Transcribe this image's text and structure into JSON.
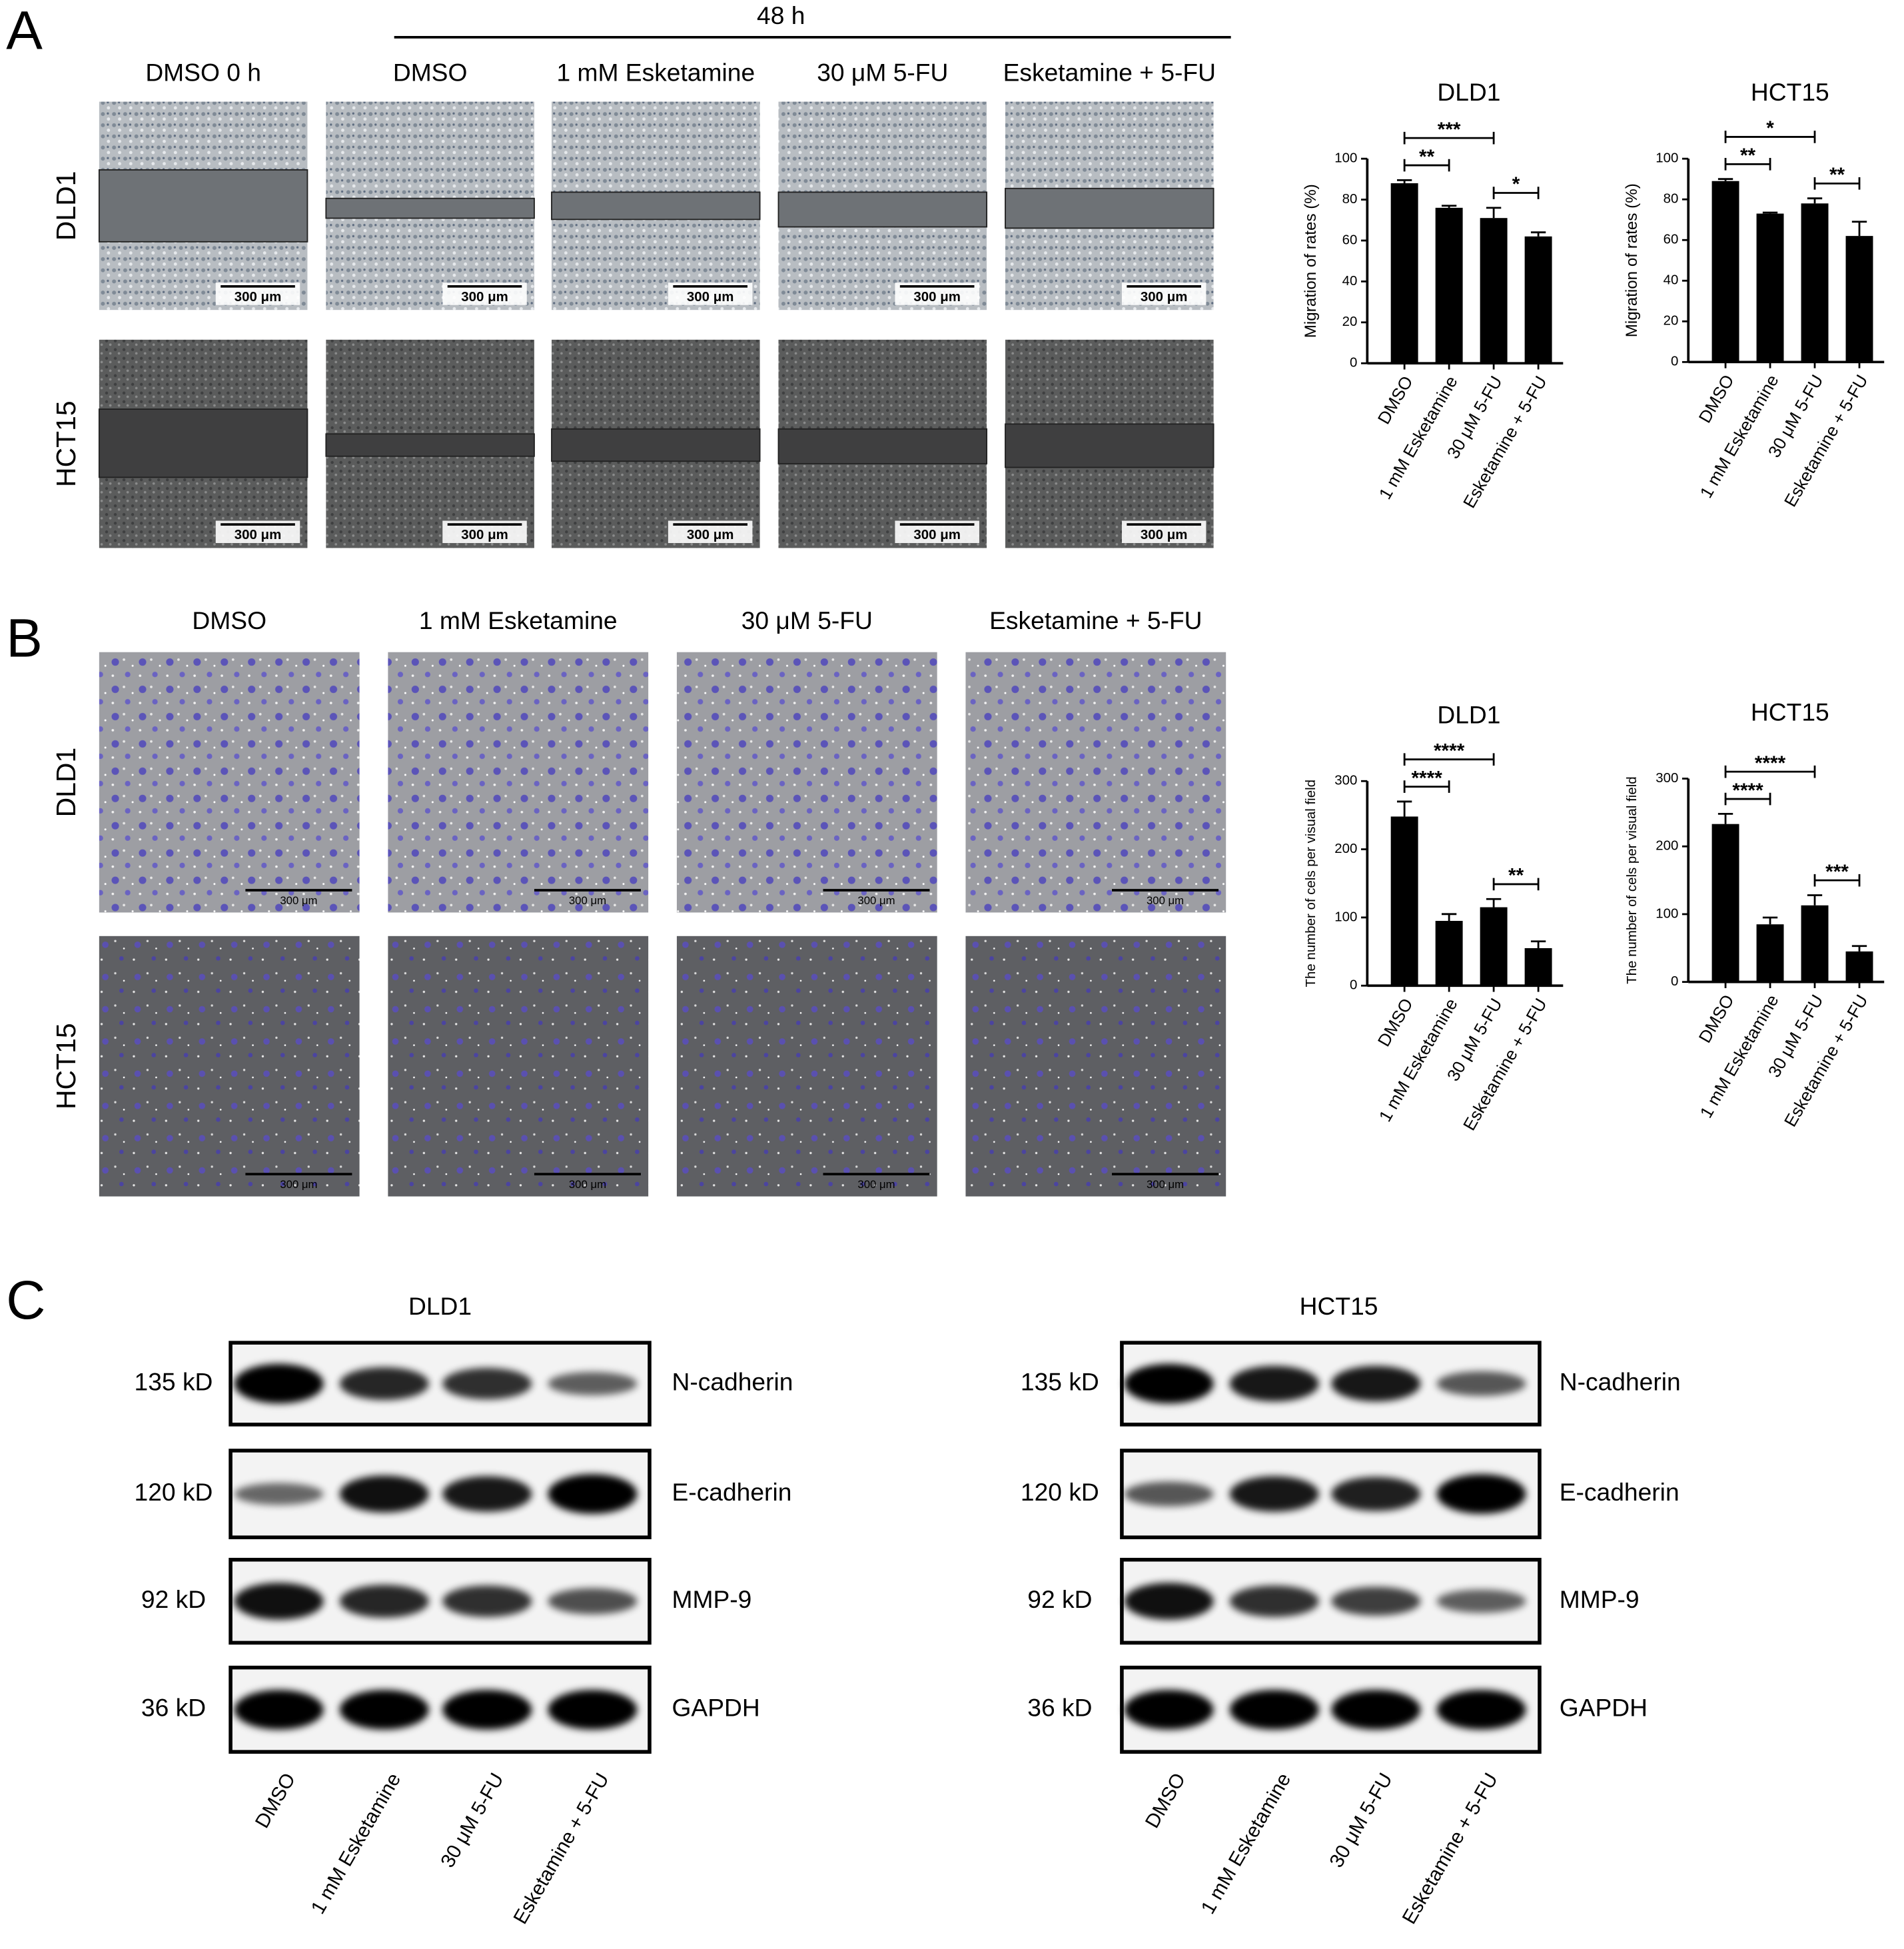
{
  "panel_labels": [
    "A",
    "B",
    "C"
  ],
  "panel_a": {
    "time_label": "48 h",
    "columns": [
      "DMSO 0 h",
      "DMSO",
      "1 mM Esketamine",
      "30 μM 5-FU",
      "Esketamine + 5-FU"
    ],
    "rows": [
      "DLD1",
      "HCT15"
    ],
    "scale_bar": "300 μm"
  },
  "panel_b": {
    "columns": [
      "DMSO",
      "1 mM Esketamine",
      "30 μM 5-FU",
      "Esketamine + 5-FU"
    ],
    "rows": [
      "DLD1",
      "HCT15"
    ],
    "scale_bar": "300 μm"
  },
  "chart_data": [
    {
      "type": "bar",
      "title": "DLD1",
      "y_label": "Migration of rates (%)",
      "categories": [
        "DMSO",
        "1 mM Esketamine",
        "30 μM 5-FU",
        "Esketamine + 5-FU"
      ],
      "values": [
        88,
        76,
        71,
        62
      ],
      "errors": [
        1.5,
        1,
        5,
        2
      ],
      "color": "#000000",
      "ylim": [
        0,
        100
      ],
      "yticks": [
        0,
        20,
        40,
        60,
        80,
        100
      ],
      "significance": [
        {
          "label": "**",
          "between": [
            "DMSO",
            "1 mM Esketamine"
          ]
        },
        {
          "label": "***",
          "between": [
            "DMSO",
            "30 μM 5-FU"
          ]
        },
        {
          "label": "*",
          "between": [
            "30 μM 5-FU",
            "Esketamine + 5-FU"
          ]
        }
      ]
    },
    {
      "type": "bar",
      "title": "HCT15",
      "y_label": "Migration of rates (%)",
      "categories": [
        "DMSO",
        "1 mM Esketamine",
        "30 μM 5-FU",
        "Esketamine + 5-FU"
      ],
      "values": [
        89,
        73,
        78,
        62
      ],
      "errors": [
        1,
        0.5,
        2.5,
        7
      ],
      "color": "#000000",
      "ylim": [
        0,
        100
      ],
      "yticks": [
        0,
        20,
        40,
        60,
        80,
        100
      ],
      "significance": [
        {
          "label": "**",
          "between": [
            "DMSO",
            "1 mM Esketamine"
          ]
        },
        {
          "label": "*",
          "between": [
            "DMSO",
            "30 μM 5-FU"
          ]
        },
        {
          "label": "**",
          "between": [
            "30 μM 5-FU",
            "Esketamine + 5-FU"
          ]
        }
      ]
    },
    {
      "type": "bar",
      "title": "DLD1",
      "y_label": "The number of cels per visual field",
      "categories": [
        "DMSO",
        "1 mM Esketamine",
        "30 μM 5-FU",
        "Esketamine + 5-FU"
      ],
      "values": [
        248,
        95,
        115,
        55
      ],
      "errors": [
        22,
        10,
        12,
        10
      ],
      "color": "#000000",
      "ylim": [
        0,
        300
      ],
      "yticks": [
        0,
        100,
        200,
        300
      ],
      "significance": [
        {
          "label": "****",
          "between": [
            "DMSO",
            "1 mM Esketamine"
          ]
        },
        {
          "label": "****",
          "between": [
            "DMSO",
            "30 μM 5-FU"
          ]
        },
        {
          "label": "**",
          "between": [
            "30 μM 5-FU",
            "Esketamine + 5-FU"
          ]
        }
      ]
    },
    {
      "type": "bar",
      "title": "HCT15",
      "y_label": "The number of cels per visual field",
      "categories": [
        "DMSO",
        "1 mM Esketamine",
        "30 μM 5-FU",
        "Esketamine + 5-FU"
      ],
      "values": [
        233,
        85,
        113,
        45
      ],
      "errors": [
        15,
        10,
        15,
        8
      ],
      "color": "#000000",
      "ylim": [
        0,
        300
      ],
      "yticks": [
        0,
        100,
        200,
        300
      ],
      "significance": [
        {
          "label": "****",
          "between": [
            "DMSO",
            "1 mM Esketamine"
          ]
        },
        {
          "label": "****",
          "between": [
            "DMSO",
            "30 μM 5-FU"
          ]
        },
        {
          "label": "***",
          "between": [
            "30 μM 5-FU",
            "Esketamine + 5-FU"
          ]
        }
      ]
    }
  ],
  "panel_c": {
    "blots": [
      {
        "title": "DLD1",
        "markers": [
          "135 kD",
          "120 kD",
          "92 kD",
          "36 kD"
        ],
        "proteins": [
          "N-cadherin",
          "E-cadherin",
          "MMP-9",
          "GAPDH"
        ],
        "lanes": [
          "DMSO",
          "1 mM Esketamine",
          "30 μM 5-FU",
          "Esketamine + 5-FU"
        ]
      },
      {
        "title": "HCT15",
        "markers": [
          "135 kD",
          "120 kD",
          "92 kD",
          "36 kD"
        ],
        "proteins": [
          "N-cadherin",
          "E-cadherin",
          "MMP-9",
          "GAPDH"
        ],
        "lanes": [
          "DMSO",
          "1 mM Esketamine",
          "30 μM 5-FU",
          "Esketamine + 5-FU"
        ]
      }
    ]
  }
}
